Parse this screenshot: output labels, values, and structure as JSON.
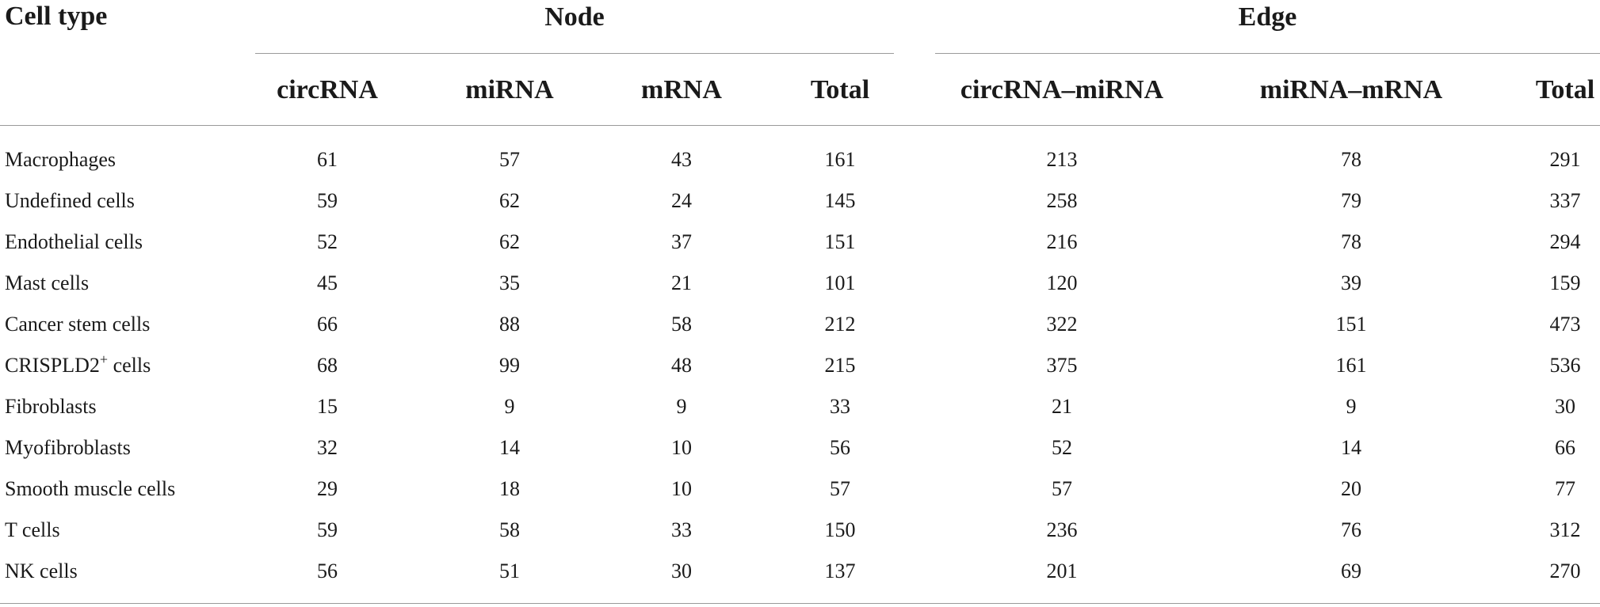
{
  "table": {
    "stub_header": "Cell type",
    "groups": [
      {
        "label": "Node"
      },
      {
        "label": "Edge"
      }
    ],
    "columns": [
      {
        "label": "circRNA"
      },
      {
        "label": "miRNA"
      },
      {
        "label": "mRNA"
      },
      {
        "label": "Total"
      },
      {
        "label": "circRNA–miRNA"
      },
      {
        "label": "miRNA–mRNA"
      },
      {
        "label": "Total"
      }
    ],
    "rows": [
      {
        "label": "Macrophages",
        "values": [
          "61",
          "57",
          "43",
          "161",
          "213",
          "78",
          "291"
        ]
      },
      {
        "label": "Undefined cells",
        "values": [
          "59",
          "62",
          "24",
          "145",
          "258",
          "79",
          "337"
        ]
      },
      {
        "label": "Endothelial cells",
        "values": [
          "52",
          "62",
          "37",
          "151",
          "216",
          "78",
          "294"
        ]
      },
      {
        "label": "Mast cells",
        "values": [
          "45",
          "35",
          "21",
          "101",
          "120",
          "39",
          "159"
        ]
      },
      {
        "label": "Cancer stem cells",
        "values": [
          "66",
          "88",
          "58",
          "212",
          "322",
          "151",
          "473"
        ]
      },
      {
        "label": "CRISPLD2",
        "label_sup": "+",
        "label_suffix": " cells",
        "values": [
          "68",
          "99",
          "48",
          "215",
          "375",
          "161",
          "536"
        ]
      },
      {
        "label": "Fibroblasts",
        "values": [
          "15",
          "9",
          "9",
          "33",
          "21",
          "9",
          "30"
        ]
      },
      {
        "label": "Myofibroblasts",
        "values": [
          "32",
          "14",
          "10",
          "56",
          "52",
          "14",
          "66"
        ]
      },
      {
        "label": "Smooth muscle cells",
        "values": [
          "29",
          "18",
          "10",
          "57",
          "57",
          "20",
          "77"
        ]
      },
      {
        "label": "T cells",
        "values": [
          "59",
          "58",
          "33",
          "150",
          "236",
          "76",
          "312"
        ]
      },
      {
        "label": "NK cells",
        "values": [
          "56",
          "51",
          "30",
          "137",
          "201",
          "69",
          "270"
        ]
      }
    ]
  }
}
